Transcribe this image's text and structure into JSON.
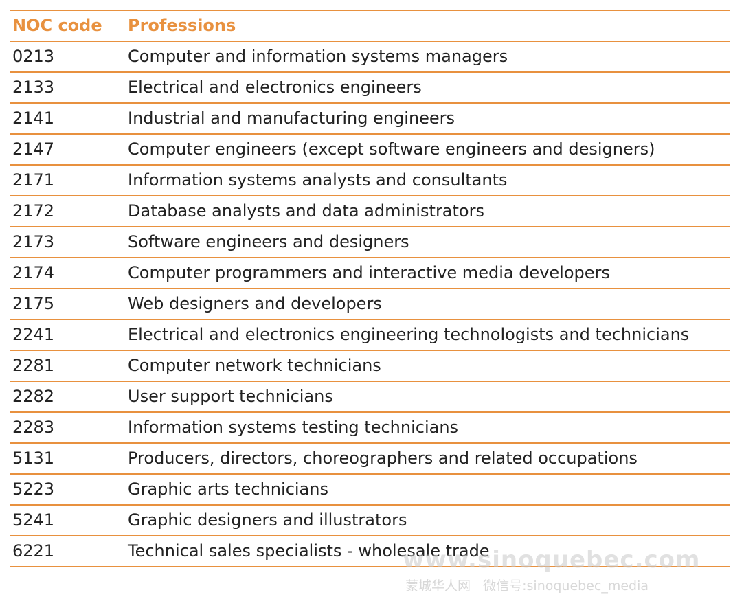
{
  "table": {
    "header": [
      "NOC code",
      "Professions"
    ],
    "rows": [
      [
        "0213",
        "Computer and information systems managers"
      ],
      [
        "2133",
        "Electrical and electronics engineers"
      ],
      [
        "2141",
        "Industrial and manufacturing engineers"
      ],
      [
        "2147",
        "Computer engineers (except software engineers and designers)"
      ],
      [
        "2171",
        "Information systems analysts and consultants"
      ],
      [
        "2172",
        "Database analysts and data administrators"
      ],
      [
        "2173",
        "Software engineers and designers"
      ],
      [
        "2174",
        "Computer programmers and interactive media developers"
      ],
      [
        "2175",
        "Web designers and developers"
      ],
      [
        "2241",
        "Electrical and electronics engineering technologists and technicians"
      ],
      [
        "2281",
        "Computer network technicians"
      ],
      [
        "2282",
        "User support technicians"
      ],
      [
        "2283",
        "Information systems testing technicians"
      ],
      [
        "5131",
        "Producers, directors, choreographers and related occupations"
      ],
      [
        "5223",
        "Graphic arts technicians"
      ],
      [
        "5241",
        "Graphic designers and illustrators"
      ],
      [
        "6221",
        "Technical sales specialists - wholesale trade"
      ]
    ]
  },
  "watermark": {
    "site": "www.sinoquebec.com",
    "line2": "蒙城华人网   微信号:sinoquebec_media"
  }
}
